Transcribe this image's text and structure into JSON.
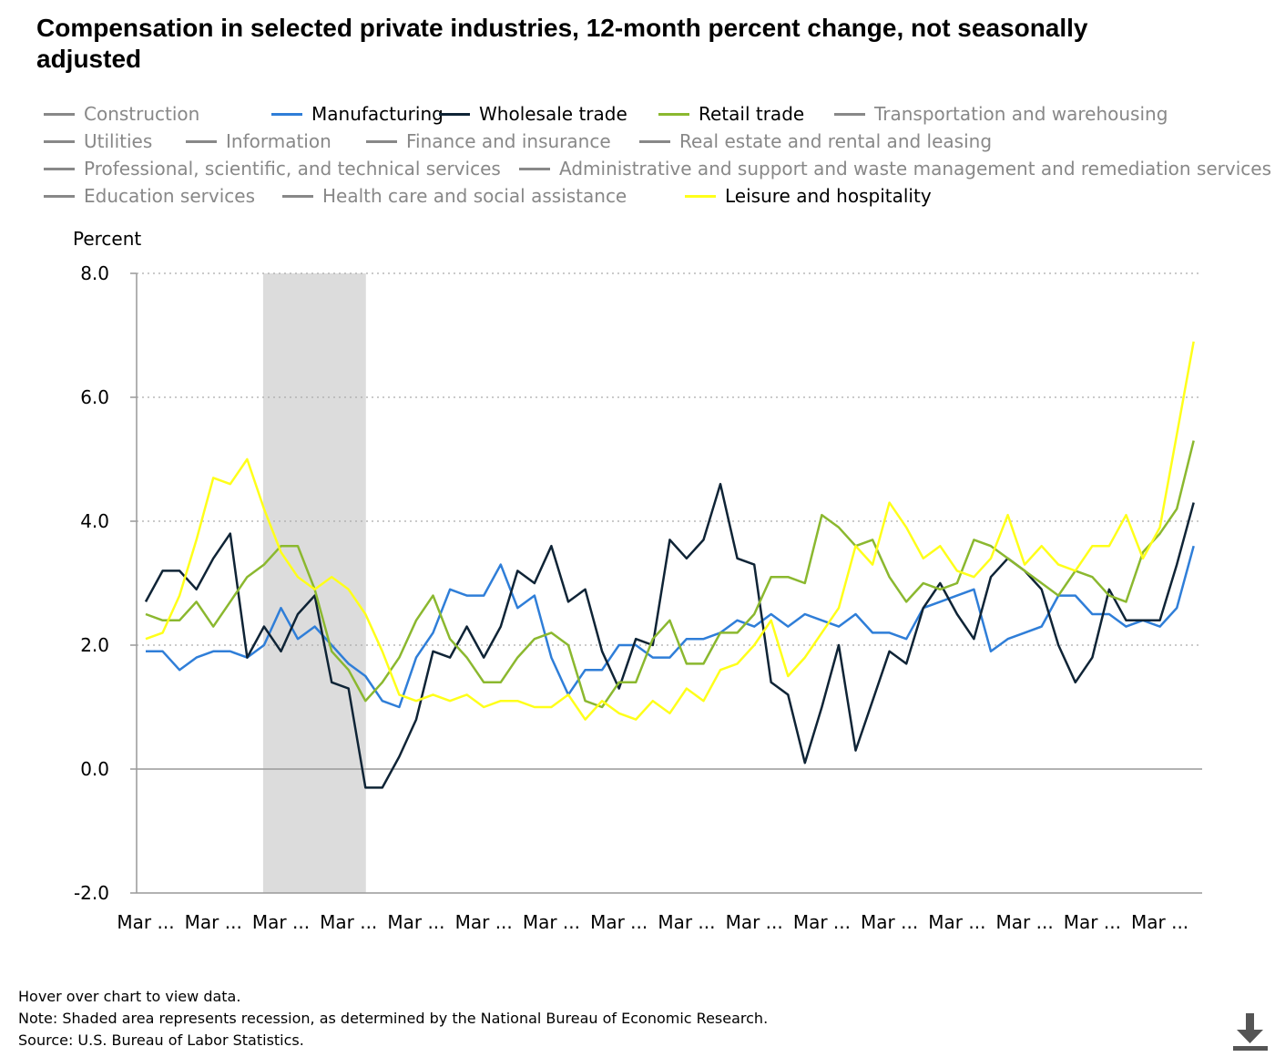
{
  "title": "Compensation in selected private industries, 12-month percent change, not seasonally adjusted",
  "legend": [
    {
      "label": "Construction",
      "color": "#888888",
      "active": false
    },
    {
      "label": "Manufacturing",
      "color": "#2f7ed8",
      "active": true
    },
    {
      "label": "Wholesale trade",
      "color": "#0f2436",
      "active": true
    },
    {
      "label": "Retail trade",
      "color": "#8bb82f",
      "active": true
    },
    {
      "label": "Transportation and warehousing",
      "color": "#888888",
      "active": false
    },
    {
      "label": "Utilities",
      "color": "#888888",
      "active": false
    },
    {
      "label": "Information",
      "color": "#888888",
      "active": false
    },
    {
      "label": "Finance and insurance",
      "color": "#888888",
      "active": false
    },
    {
      "label": "Real estate and rental and leasing",
      "color": "#888888",
      "active": false
    },
    {
      "label": "Professional, scientific, and technical services",
      "color": "#888888",
      "active": false
    },
    {
      "label": "Administrative and support and waste management and remediation services",
      "color": "#888888",
      "active": false
    },
    {
      "label": "Education services",
      "color": "#888888",
      "active": false
    },
    {
      "label": "Health care and social assistance",
      "color": "#888888",
      "active": false
    },
    {
      "label": "Leisure and hospitality",
      "color": "#ffff1a",
      "active": true
    }
  ],
  "chart_data": {
    "type": "line",
    "ylabel": "Percent",
    "ylim": [
      -2.0,
      8.0
    ],
    "yticks": [
      "-2.0",
      "0.0",
      "2.0",
      "4.0",
      "6.0",
      "8.0"
    ],
    "xtick_labels": [
      "Mar ...",
      "Mar ...",
      "Mar ...",
      "Mar ...",
      "Mar ...",
      "Mar ...",
      "Mar ...",
      "Mar ...",
      "Mar ...",
      "Mar ...",
      "Mar ...",
      "Mar ...",
      "Mar ...",
      "Mar ...",
      "Mar ...",
      "Mar ..."
    ],
    "points_per_year": 4,
    "recession_shading": {
      "start_index": 7,
      "end_index": 13
    },
    "grid": "horizontal dotted",
    "series": [
      {
        "name": "Manufacturing",
        "color": "#2f7ed8",
        "values": [
          1.9,
          1.9,
          1.6,
          1.8,
          1.9,
          1.9,
          1.8,
          2.0,
          2.6,
          2.1,
          2.3,
          2.0,
          1.7,
          1.5,
          1.1,
          1.0,
          1.8,
          2.2,
          2.9,
          2.8,
          2.8,
          3.3,
          2.6,
          2.8,
          1.8,
          1.2,
          1.6,
          1.6,
          2.0,
          2.0,
          1.8,
          1.8,
          2.1,
          2.1,
          2.2,
          2.4,
          2.3,
          2.5,
          2.3,
          2.5,
          2.4,
          2.3,
          2.5,
          2.2,
          2.2,
          2.1,
          2.6,
          2.7,
          2.8,
          2.9,
          1.9,
          2.1,
          2.2,
          2.3,
          2.8,
          2.8,
          2.5,
          2.5,
          2.3,
          2.4,
          2.3,
          2.6,
          3.6
        ]
      },
      {
        "name": "Wholesale trade",
        "color": "#0f2436",
        "values": [
          2.7,
          3.2,
          3.2,
          2.9,
          3.4,
          3.8,
          1.8,
          2.3,
          1.9,
          2.5,
          2.8,
          1.4,
          1.3,
          -0.3,
          -0.3,
          0.2,
          0.8,
          1.9,
          1.8,
          2.3,
          1.8,
          2.3,
          3.2,
          3.0,
          3.6,
          2.7,
          2.9,
          1.9,
          1.3,
          2.1,
          2.0,
          3.7,
          3.4,
          3.7,
          4.6,
          3.4,
          3.3,
          1.4,
          1.2,
          0.1,
          1.0,
          2.0,
          0.3,
          1.1,
          1.9,
          1.7,
          2.6,
          3.0,
          2.5,
          2.1,
          3.1,
          3.4,
          3.2,
          2.9,
          2.0,
          1.4,
          1.8,
          2.9,
          2.4,
          2.4,
          2.4,
          3.3,
          4.3
        ]
      },
      {
        "name": "Retail trade",
        "color": "#8bb82f",
        "values": [
          2.5,
          2.4,
          2.4,
          2.7,
          2.3,
          2.7,
          3.1,
          3.3,
          3.6,
          3.6,
          2.9,
          1.9,
          1.6,
          1.1,
          1.4,
          1.8,
          2.4,
          2.8,
          2.1,
          1.8,
          1.4,
          1.4,
          1.8,
          2.1,
          2.2,
          2.0,
          1.1,
          1.0,
          1.4,
          1.4,
          2.1,
          2.4,
          1.7,
          1.7,
          2.2,
          2.2,
          2.5,
          3.1,
          3.1,
          3.0,
          4.1,
          3.9,
          3.6,
          3.7,
          3.1,
          2.7,
          3.0,
          2.9,
          3.0,
          3.7,
          3.6,
          3.4,
          3.2,
          3.0,
          2.8,
          3.2,
          3.1,
          2.8,
          2.7,
          3.5,
          3.8,
          4.2,
          5.3
        ]
      },
      {
        "name": "Leisure and hospitality",
        "color": "#ffff1a",
        "values": [
          2.1,
          2.2,
          2.8,
          3.7,
          4.7,
          4.6,
          5.0,
          4.2,
          3.5,
          3.1,
          2.9,
          3.1,
          2.9,
          2.5,
          1.9,
          1.2,
          1.1,
          1.2,
          1.1,
          1.2,
          1.0,
          1.1,
          1.1,
          1.0,
          1.0,
          1.2,
          0.8,
          1.1,
          0.9,
          0.8,
          1.1,
          0.9,
          1.3,
          1.1,
          1.6,
          1.7,
          2.0,
          2.4,
          1.5,
          1.8,
          2.2,
          2.6,
          3.6,
          3.3,
          4.3,
          3.9,
          3.4,
          3.6,
          3.2,
          3.1,
          3.4,
          4.1,
          3.3,
          3.6,
          3.3,
          3.2,
          3.6,
          3.6,
          4.1,
          3.4,
          3.9,
          5.4,
          6.9
        ]
      }
    ]
  },
  "footer": {
    "hover": "Hover over chart to view data.",
    "note": "Note: Shaded area represents recession, as determined by the National Bureau of Economic Research.",
    "source": "Source: U.S. Bureau of Labor Statistics."
  },
  "download_icon": "download-arrow-icon"
}
